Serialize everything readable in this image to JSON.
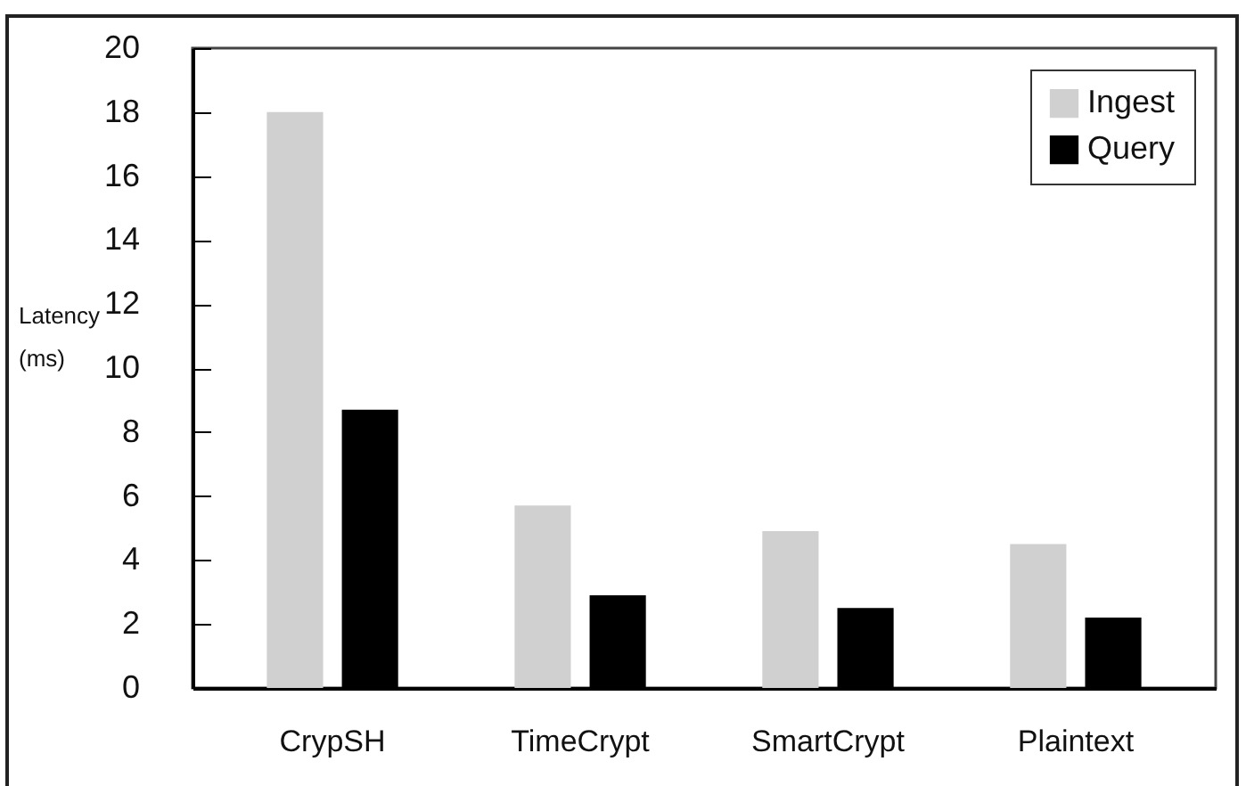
{
  "chart_data": {
    "type": "bar",
    "ylabel": "Latency (ms)",
    "categories": [
      "CrypSH",
      "TimeCrypt",
      "SmartCrypt",
      "Plaintext"
    ],
    "series": [
      {
        "name": "Ingest",
        "color": "#d0d0d0",
        "values": [
          18,
          5.7,
          4.9,
          4.5
        ]
      },
      {
        "name": "Query",
        "color": "#000000",
        "values": [
          8.7,
          2.9,
          2.5,
          2.2
        ]
      }
    ],
    "ylim": [
      0,
      20
    ],
    "yticks": [
      0,
      2,
      4,
      6,
      8,
      10,
      12,
      14,
      16,
      18,
      20
    ],
    "grid": false,
    "legend": "top right"
  }
}
